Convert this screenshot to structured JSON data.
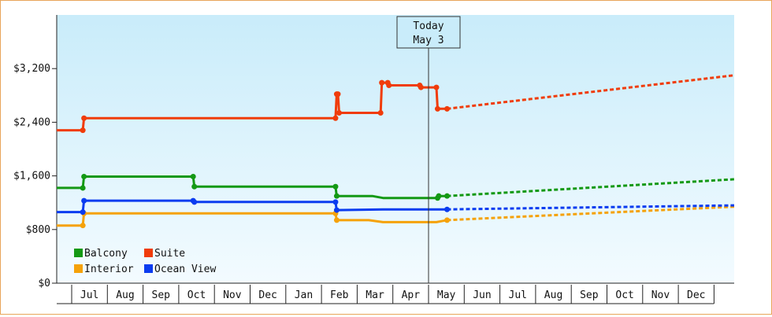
{
  "chart_data": {
    "type": "line",
    "title": "",
    "xlabel": "",
    "ylabel": "",
    "ylim": [
      0,
      4000
    ],
    "y_ticks": [
      0,
      800,
      1600,
      2400,
      3200
    ],
    "y_tick_labels": [
      "$0",
      "$800",
      "$1,600",
      "$2,400",
      "$3,200"
    ],
    "x_tick_labels": [
      "Jul",
      "Aug",
      "Sep",
      "Oct",
      "Nov",
      "Dec",
      "Jan",
      "Feb",
      "Mar",
      "Apr",
      "May",
      "Jun",
      "Jul",
      "Aug",
      "Sep",
      "Oct",
      "Nov",
      "Dec"
    ],
    "x_range": [
      "2014-06-08",
      "2015-12-31"
    ],
    "grid": false,
    "legend_position": "bottom-left",
    "annotation": {
      "line1": "Today",
      "line2": "May 3",
      "date": "2015-05-03"
    },
    "series": [
      {
        "name": "Balcony",
        "color": "#149914",
        "history": [
          [
            "2014-06-08",
            1420
          ],
          [
            "2014-06-30",
            1420
          ],
          [
            "2014-07-01",
            1590
          ],
          [
            "2014-10-01",
            1590
          ],
          [
            "2014-10-02",
            1440
          ],
          [
            "2015-01-29",
            1440
          ],
          [
            "2015-01-30",
            1300
          ],
          [
            "2015-03-01",
            1300
          ],
          [
            "2015-03-10",
            1270
          ],
          [
            "2015-04-25",
            1270
          ],
          [
            "2015-04-26",
            1300
          ],
          [
            "2015-05-03",
            1300
          ]
        ],
        "forecast": [
          [
            "2015-05-03",
            1300
          ],
          [
            "2015-12-31",
            1550
          ]
        ]
      },
      {
        "name": "Suite",
        "color": "#f03c0a",
        "history": [
          [
            "2014-06-08",
            2280
          ],
          [
            "2014-06-30",
            2280
          ],
          [
            "2014-07-01",
            2460
          ],
          [
            "2014-10-01",
            2460
          ],
          [
            "2015-01-29",
            2460
          ],
          [
            "2015-01-30",
            2820
          ],
          [
            "2015-01-31",
            2820
          ],
          [
            "2015-02-01",
            2540
          ],
          [
            "2015-03-08",
            2540
          ],
          [
            "2015-03-09",
            2990
          ],
          [
            "2015-03-14",
            2990
          ],
          [
            "2015-03-15",
            2950
          ],
          [
            "2015-04-10",
            2950
          ],
          [
            "2015-04-11",
            2920
          ],
          [
            "2015-04-24",
            2920
          ],
          [
            "2015-04-25",
            2600
          ],
          [
            "2015-05-03",
            2600
          ]
        ],
        "forecast": [
          [
            "2015-05-03",
            2600
          ],
          [
            "2015-12-31",
            3100
          ]
        ]
      },
      {
        "name": "Interior",
        "color": "#f5a20a",
        "history": [
          [
            "2014-06-08",
            860
          ],
          [
            "2014-06-30",
            860
          ],
          [
            "2014-07-01",
            1040
          ],
          [
            "2014-10-01",
            1040
          ],
          [
            "2015-01-29",
            1040
          ],
          [
            "2015-01-30",
            940
          ],
          [
            "2015-02-26",
            940
          ],
          [
            "2015-03-10",
            910
          ],
          [
            "2015-04-24",
            910
          ],
          [
            "2015-04-30",
            930
          ],
          [
            "2015-05-03",
            940
          ]
        ],
        "forecast": [
          [
            "2015-05-03",
            940
          ],
          [
            "2015-12-31",
            1140
          ]
        ]
      },
      {
        "name": "Ocean View",
        "color": "#0a3cf0",
        "history": [
          [
            "2014-06-08",
            1060
          ],
          [
            "2014-06-30",
            1060
          ],
          [
            "2014-07-01",
            1230
          ],
          [
            "2014-10-01",
            1230
          ],
          [
            "2014-10-02",
            1210
          ],
          [
            "2015-01-29",
            1210
          ],
          [
            "2015-01-30",
            1090
          ],
          [
            "2015-03-10",
            1100
          ],
          [
            "2015-04-28",
            1100
          ],
          [
            "2015-05-03",
            1100
          ]
        ],
        "forecast": [
          [
            "2015-05-03",
            1100
          ],
          [
            "2015-12-31",
            1160
          ]
        ]
      }
    ]
  }
}
